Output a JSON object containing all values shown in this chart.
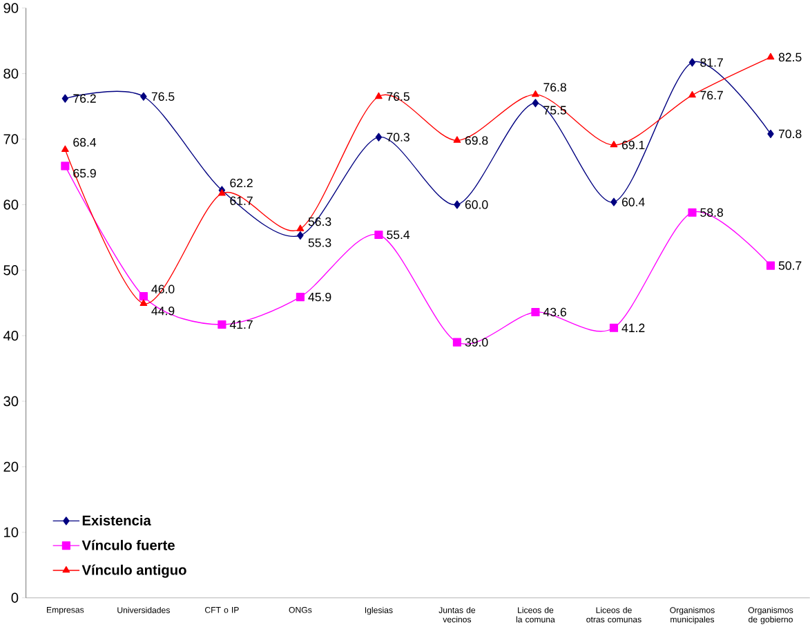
{
  "chart_data": {
    "type": "line",
    "categories": [
      "Empresas",
      "Universidades",
      "CFT o IP",
      "ONGs",
      "Iglesias",
      "Juntas de vecinos",
      "Liceos de la comuna",
      "Liceos de otras comunas",
      "Organismos municipales",
      "Organismos de gobierno"
    ],
    "series": [
      {
        "name": "Existencia",
        "color": "#000080",
        "marker": "diamond",
        "values": [
          76.2,
          76.5,
          62.2,
          55.3,
          70.3,
          60.0,
          75.5,
          60.4,
          81.7,
          70.8
        ],
        "value_labels": [
          "76.2",
          "76.5",
          "62.2",
          "55.3",
          "70.3",
          "60.0",
          "75.5",
          "60.4",
          "81.7",
          "70.8"
        ]
      },
      {
        "name": "Vínculo fuerte",
        "color": "#ff00ff",
        "marker": "square",
        "values": [
          65.9,
          46.0,
          41.7,
          45.9,
          55.4,
          39.0,
          43.6,
          41.2,
          58.8,
          50.7
        ],
        "value_labels": [
          "65.9",
          "46.0",
          "41.7",
          "45.9",
          "55.4",
          "39.0",
          "43.6",
          "41.2",
          "58.8",
          "50.7"
        ]
      },
      {
        "name": "Vínculo antiguo",
        "color": "#ff0000",
        "marker": "triangle",
        "values": [
          68.4,
          44.9,
          61.7,
          56.3,
          76.5,
          69.8,
          76.8,
          69.1,
          76.7,
          82.5
        ],
        "value_labels": [
          "68.4",
          "44.9",
          "61.7",
          "56.3",
          "76.5",
          "69.8",
          "76.8",
          "69.1",
          "76.7",
          "82.5"
        ]
      }
    ],
    "ylim": [
      0,
      90
    ],
    "yticks": [
      0,
      10,
      20,
      30,
      40,
      50,
      60,
      70,
      80,
      90
    ],
    "grid": false,
    "legend": "bottom left",
    "line_style": "solid"
  }
}
